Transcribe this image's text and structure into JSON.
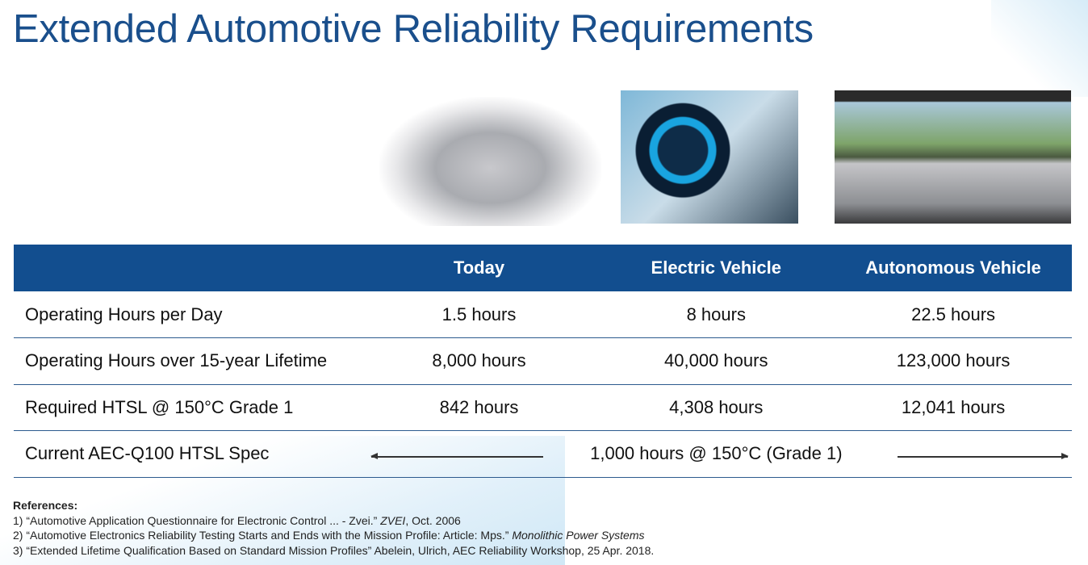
{
  "title": "Extended Automotive Reliability Requirements",
  "table": {
    "headers": [
      "",
      "Today",
      "Electric Vehicle",
      "Autonomous Vehicle"
    ],
    "rows": [
      [
        "Operating Hours per Day",
        "1.5 hours",
        "8 hours",
        "22.5 hours"
      ],
      [
        "Operating Hours over 15-year Lifetime",
        "8,000 hours",
        "40,000 hours",
        "123,000 hours"
      ],
      [
        "Required HTSL @ 150°C Grade 1",
        "842 hours",
        "4,308 hours",
        "12,041 hours"
      ]
    ],
    "spec_row": {
      "label": "Current AEC-Q100 HTSL Spec",
      "value": "1,000 hours @ 150°C (Grade 1)"
    }
  },
  "references": {
    "heading": "References:",
    "items": [
      {
        "pre": "1) “Automotive Application Questionnaire for Electronic Control ... - Zvei.” ",
        "ital": "ZVEI",
        "post": ", Oct. 2006"
      },
      {
        "pre": "2) “Automotive Electronics Reliability Testing Starts and Ends with the Mission Profile: Article: Mps.” ",
        "ital": "Monolithic Power Systems",
        "post": ""
      },
      {
        "pre": "3) “Extended Lifetime Qualification Based on Standard Mission Profiles” Abelein, Ulrich, AEC Reliability Workshop, 25 Apr. 2018.",
        "ital": "",
        "post": ""
      }
    ]
  },
  "colors": {
    "title": "#1a4f8c",
    "header_bg": "#124e8f",
    "row_line": "#2c5a8e"
  }
}
